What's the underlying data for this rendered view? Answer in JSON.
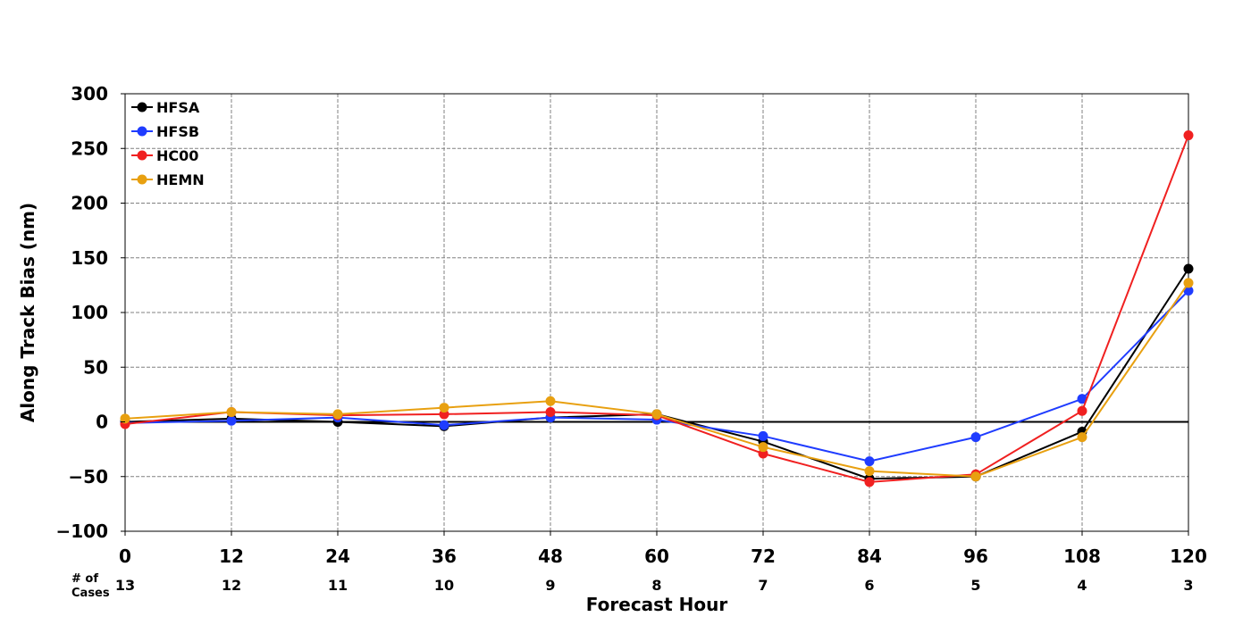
{
  "chart_data": {
    "type": "line",
    "title": "",
    "xlabel": "Forecast Hour",
    "ylabel": "Along Track Bias (nm)",
    "x": [
      0,
      12,
      24,
      36,
      48,
      60,
      72,
      84,
      96,
      108,
      120
    ],
    "xlim": [
      0,
      120
    ],
    "ylim": [
      -100,
      300
    ],
    "yticks": [
      -100,
      -50,
      0,
      50,
      100,
      150,
      200,
      250,
      300
    ],
    "ytick_labels": [
      "−100",
      "−50",
      "0",
      "50",
      "100",
      "150",
      "200",
      "250",
      "300"
    ],
    "xtick_labels": [
      "0",
      "12",
      "24",
      "36",
      "48",
      "60",
      "72",
      "84",
      "96",
      "108",
      "120"
    ],
    "cases_title_line1": "# of",
    "cases_title_line2": "Cases",
    "cases": [
      "13",
      "12",
      "11",
      "10",
      "9",
      "8",
      "7",
      "6",
      "5",
      "4",
      "3"
    ],
    "grid": true,
    "legend_position": "top-left",
    "series": [
      {
        "name": "HFSA",
        "color": "#000000",
        "values": [
          0,
          3,
          0,
          -4,
          4,
          7,
          -18,
          -52,
          -50,
          -9,
          140
        ]
      },
      {
        "name": "HFSB",
        "color": "#1f3cff",
        "values": [
          -1,
          1,
          4,
          -3,
          4,
          2,
          -13,
          -36,
          -14,
          21,
          120
        ]
      },
      {
        "name": "HC00",
        "color": "#f02020",
        "values": [
          -2,
          9,
          6,
          7,
          9,
          6,
          -29,
          -55,
          -48,
          10,
          262
        ]
      },
      {
        "name": "HEMN",
        "color": "#e8a010",
        "values": [
          3,
          9,
          7,
          13,
          19,
          7,
          -23,
          -45,
          -50,
          -14,
          127
        ]
      }
    ]
  }
}
